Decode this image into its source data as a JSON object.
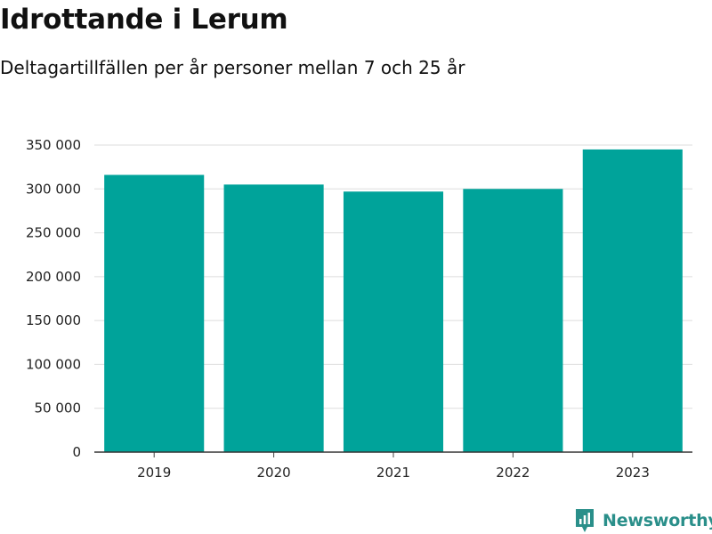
{
  "header": {
    "title": "Idrottande i Lerum",
    "subtitle": "Deltagartillfällen per år personer mellan 7 och 25 år"
  },
  "chart_data": {
    "type": "bar",
    "categories": [
      "2019",
      "2020",
      "2021",
      "2022",
      "2023"
    ],
    "values": [
      316000,
      305000,
      297000,
      300000,
      345000
    ],
    "ylim": [
      0,
      350000
    ],
    "yticks": [
      0,
      50000,
      100000,
      150000,
      200000,
      250000,
      300000,
      350000
    ],
    "ytick_labels": [
      "0",
      "50 000",
      "100 000",
      "150 000",
      "200 000",
      "250 000",
      "300 000",
      "350 000"
    ],
    "grid": true,
    "bar_color": "#00a39a",
    "xlabel": "",
    "ylabel": ""
  },
  "brand": {
    "name": "Newsworthy",
    "color": "#2a8f8a",
    "icon": "newsworthy-logo-icon"
  }
}
